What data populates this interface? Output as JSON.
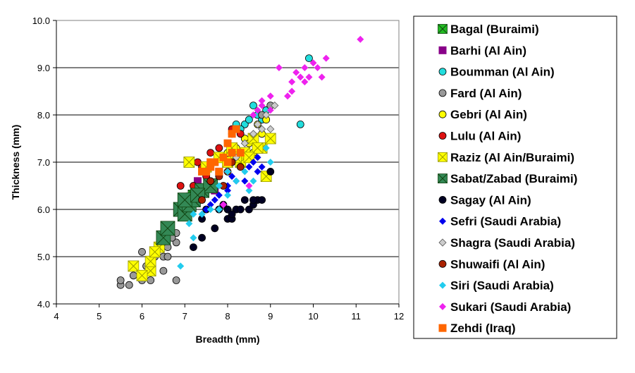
{
  "chart_data": {
    "type": "scatter",
    "title": "",
    "xlabel": "Breadth (mm)",
    "ylabel": "Thickness (mm)",
    "xlim": [
      4,
      12
    ],
    "ylim": [
      4.0,
      10.0
    ],
    "xticks": [
      "4",
      "5",
      "6",
      "7",
      "8",
      "9",
      "10",
      "11",
      "12"
    ],
    "yticks": [
      "4.0",
      "5.0",
      "6.0",
      "7.0",
      "8.0",
      "9.0",
      "10.0"
    ],
    "grid": "horizontal major gridlines",
    "legend_position": "right",
    "series": [
      {
        "name": "Bagal (Buraimi)",
        "marker": "square-x",
        "color": "#22bb22",
        "points": [
          [
            6.6,
            5.5
          ],
          [
            6.5,
            5.3
          ],
          [
            6.9,
            6.0
          ],
          [
            7.0,
            6.2
          ],
          [
            7.2,
            6.3
          ]
        ]
      },
      {
        "name": "Barhi (Al Ain)",
        "marker": "square",
        "color": "#880088",
        "points": [
          [
            7.0,
            6.2
          ],
          [
            7.3,
            6.6
          ],
          [
            7.1,
            6.0
          ],
          [
            7.6,
            6.5
          ],
          [
            7.8,
            6.8
          ],
          [
            7.7,
            6.4
          ]
        ]
      },
      {
        "name": "Boumman (Al Ain)",
        "marker": "circle",
        "color": "#22dddd",
        "points": [
          [
            9.9,
            9.2
          ],
          [
            8.6,
            8.2
          ],
          [
            8.9,
            8.1
          ],
          [
            8.4,
            7.8
          ],
          [
            8.2,
            7.8
          ],
          [
            9.7,
            7.8
          ],
          [
            8.7,
            8.0
          ],
          [
            8.3,
            7.7
          ],
          [
            8.5,
            7.9
          ],
          [
            8.8,
            7.9
          ],
          [
            8.1,
            7.6
          ]
        ]
      },
      {
        "name": "Fard (Al Ain)",
        "marker": "circle",
        "color": "#999999",
        "points": [
          [
            5.5,
            4.4
          ],
          [
            5.7,
            4.4
          ],
          [
            5.5,
            4.5
          ],
          [
            5.8,
            4.6
          ],
          [
            6.0,
            4.5
          ],
          [
            6.2,
            4.5
          ],
          [
            6.5,
            4.7
          ],
          [
            6.8,
            4.5
          ],
          [
            6.1,
            4.8
          ],
          [
            6.3,
            5.0
          ],
          [
            6.5,
            5.0
          ],
          [
            6.6,
            5.2
          ],
          [
            6.8,
            5.3
          ],
          [
            6.8,
            5.5
          ],
          [
            6.0,
            5.1
          ],
          [
            6.6,
            5.0
          ],
          [
            6.7,
            5.4
          ],
          [
            9.0,
            8.2
          ],
          [
            8.8,
            8.0
          ]
        ]
      },
      {
        "name": "Gebri (Al Ain)",
        "marker": "circle",
        "color": "#ffff00",
        "points": [
          [
            8.9,
            7.9
          ],
          [
            8.7,
            7.8
          ],
          [
            8.4,
            7.5
          ],
          [
            8.6,
            7.2
          ],
          [
            8.2,
            7.3
          ],
          [
            8.8,
            7.6
          ],
          [
            8.5,
            7.4
          ],
          [
            8.0,
            7.2
          ]
        ]
      },
      {
        "name": "Lulu (Al Ain)",
        "marker": "circle",
        "color": "#dd1111",
        "points": [
          [
            6.9,
            6.5
          ],
          [
            7.2,
            6.5
          ],
          [
            7.4,
            6.9
          ],
          [
            7.6,
            7.2
          ],
          [
            7.8,
            7.3
          ],
          [
            8.1,
            7.7
          ],
          [
            8.3,
            7.6
          ],
          [
            7.5,
            6.7
          ],
          [
            7.3,
            7.0
          ]
        ]
      },
      {
        "name": "Raziz (Al Ain/Buraimi)",
        "marker": "square-x",
        "color": "#ffff00",
        "points": [
          [
            5.8,
            4.8
          ],
          [
            6.2,
            4.7
          ],
          [
            6.2,
            4.9
          ],
          [
            6.0,
            4.6
          ],
          [
            6.4,
            5.2
          ],
          [
            6.3,
            5.1
          ],
          [
            7.1,
            7.0
          ],
          [
            7.5,
            6.9
          ],
          [
            7.8,
            7.1
          ],
          [
            8.0,
            7.0
          ],
          [
            8.1,
            7.3
          ],
          [
            8.3,
            7.0
          ],
          [
            8.4,
            7.2
          ],
          [
            8.6,
            7.5
          ],
          [
            8.8,
            7.3
          ],
          [
            9.0,
            7.5
          ],
          [
            8.9,
            6.7
          ],
          [
            8.2,
            7.1
          ],
          [
            8.7,
            7.3
          ],
          [
            8.5,
            7.1
          ]
        ]
      },
      {
        "name": "Sabat/Zabad (Buraimi)",
        "marker": "square-x",
        "color": "#338855",
        "points": [
          [
            6.9,
            6.0
          ],
          [
            7.0,
            5.9
          ],
          [
            7.1,
            6.1
          ],
          [
            7.2,
            6.2
          ],
          [
            7.4,
            6.4
          ],
          [
            7.6,
            6.5
          ],
          [
            6.5,
            5.4
          ],
          [
            6.6,
            5.6
          ],
          [
            7.0,
            6.2
          ],
          [
            7.3,
            6.3
          ]
        ]
      },
      {
        "name": "Sagay (Al Ain)",
        "marker": "circle",
        "color": "#000022",
        "points": [
          [
            7.2,
            5.2
          ],
          [
            7.4,
            5.4
          ],
          [
            7.7,
            5.6
          ],
          [
            8.0,
            5.8
          ],
          [
            8.1,
            5.8
          ],
          [
            8.2,
            6.0
          ],
          [
            8.3,
            6.0
          ],
          [
            8.5,
            6.0
          ],
          [
            8.6,
            6.1
          ],
          [
            8.7,
            6.2
          ],
          [
            8.8,
            6.2
          ],
          [
            9.0,
            6.8
          ],
          [
            8.0,
            6.0
          ],
          [
            7.9,
            6.1
          ],
          [
            8.4,
            6.2
          ],
          [
            7.4,
            5.8
          ],
          [
            7.5,
            6.0
          ],
          [
            8.1,
            5.9
          ],
          [
            7.8,
            6.0
          ],
          [
            8.6,
            6.2
          ]
        ]
      },
      {
        "name": "Sefri (Saudi Arabia)",
        "marker": "diamond",
        "color": "#0000ee",
        "points": [
          [
            7.5,
            6.0
          ],
          [
            7.7,
            6.2
          ],
          [
            7.6,
            6.1
          ],
          [
            8.0,
            6.4
          ],
          [
            8.2,
            6.6
          ],
          [
            8.5,
            6.9
          ],
          [
            8.7,
            6.8
          ],
          [
            8.8,
            6.9
          ],
          [
            8.6,
            7.0
          ],
          [
            8.7,
            7.1
          ],
          [
            8.4,
            6.6
          ],
          [
            7.8,
            6.3
          ],
          [
            8.0,
            6.5
          ],
          [
            8.1,
            6.7
          ],
          [
            7.4,
            5.9
          ]
        ]
      },
      {
        "name": "Shagra (Saudi Arabia)",
        "marker": "diamond",
        "color": "#cccccc",
        "points": [
          [
            8.4,
            7.4
          ],
          [
            8.6,
            7.6
          ],
          [
            8.8,
            7.7
          ],
          [
            9.0,
            7.7
          ],
          [
            8.7,
            7.8
          ],
          [
            8.2,
            7.1
          ],
          [
            9.1,
            8.2
          ],
          [
            8.9,
            8.0
          ]
        ]
      },
      {
        "name": "Shuwaifi (Al Ain)",
        "marker": "circle",
        "color": "#aa2200",
        "points": [
          [
            7.4,
            6.2
          ],
          [
            7.6,
            6.6
          ],
          [
            7.8,
            6.7
          ],
          [
            8.0,
            6.8
          ],
          [
            8.1,
            7.0
          ],
          [
            8.3,
            6.9
          ],
          [
            7.9,
            6.5
          ]
        ]
      },
      {
        "name": "Siri (Saudi Arabia)",
        "marker": "diamond",
        "color": "#22ccee",
        "points": [
          [
            6.9,
            4.8
          ],
          [
            7.2,
            5.4
          ],
          [
            7.1,
            5.7
          ],
          [
            7.4,
            5.9
          ],
          [
            7.6,
            6.0
          ],
          [
            7.8,
            6.0
          ],
          [
            8.0,
            6.3
          ],
          [
            8.2,
            6.6
          ],
          [
            8.4,
            6.8
          ],
          [
            8.5,
            6.4
          ],
          [
            8.6,
            6.6
          ],
          [
            8.9,
            7.3
          ],
          [
            9.0,
            7.0
          ],
          [
            8.0,
            6.8
          ],
          [
            7.8,
            6.5
          ],
          [
            7.2,
            5.9
          ]
        ]
      },
      {
        "name": "Sukari (Saudi Arabia)",
        "marker": "diamond",
        "color": "#ee22ee",
        "points": [
          [
            11.1,
            9.6
          ],
          [
            10.3,
            9.2
          ],
          [
            10.0,
            9.1
          ],
          [
            9.9,
            8.8
          ],
          [
            9.8,
            8.7
          ],
          [
            9.7,
            8.8
          ],
          [
            9.5,
            8.5
          ],
          [
            9.4,
            8.4
          ],
          [
            9.6,
            8.9
          ],
          [
            9.8,
            9.0
          ],
          [
            10.2,
            8.8
          ],
          [
            10.1,
            9.0
          ],
          [
            9.2,
            9.0
          ],
          [
            9.0,
            8.4
          ],
          [
            8.8,
            8.3
          ],
          [
            8.8,
            8.2
          ],
          [
            8.7,
            8.1
          ],
          [
            8.6,
            8.0
          ],
          [
            9.0,
            8.1
          ],
          [
            7.9,
            6.1
          ],
          [
            8.5,
            6.5
          ],
          [
            9.5,
            8.7
          ]
        ]
      },
      {
        "name": "Zehdi (Iraq)",
        "marker": "square",
        "color": "#ff6600",
        "points": [
          [
            7.4,
            6.8
          ],
          [
            7.6,
            6.9
          ],
          [
            7.7,
            7.0
          ],
          [
            7.9,
            7.1
          ],
          [
            8.0,
            7.0
          ],
          [
            8.1,
            7.2
          ],
          [
            8.1,
            7.6
          ],
          [
            8.2,
            7.7
          ],
          [
            7.5,
            6.8
          ],
          [
            7.8,
            6.8
          ],
          [
            8.0,
            7.4
          ],
          [
            7.6,
            7.0
          ],
          [
            8.3,
            7.2
          ]
        ]
      }
    ]
  }
}
